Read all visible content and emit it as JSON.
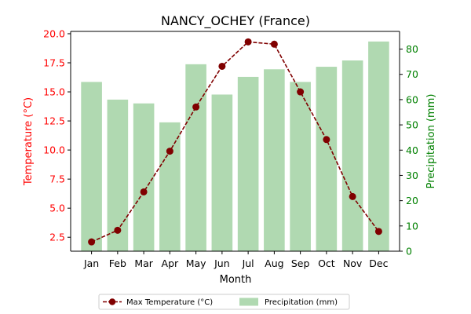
{
  "chart_data": {
    "type": "bar+line",
    "title": "NANCY_OCHEY (France)",
    "xlabel": "Month",
    "categories": [
      "Jan",
      "Feb",
      "Mar",
      "Apr",
      "May",
      "Jun",
      "Jul",
      "Aug",
      "Sep",
      "Oct",
      "Nov",
      "Dec"
    ],
    "left_axis": {
      "label": "Temperature (°C)",
      "color": "#ff0000",
      "ylim": [
        1.3,
        20.2
      ],
      "ticks": [
        2.5,
        5.0,
        7.5,
        10.0,
        12.5,
        15.0,
        17.5,
        20.0
      ],
      "tick_labels": [
        "2.5",
        "5.0",
        "7.5",
        "10.0",
        "12.5",
        "15.0",
        "17.5",
        "20.0"
      ]
    },
    "right_axis": {
      "label": "Precipitation (mm)",
      "color": "#008000",
      "ylim": [
        0,
        87
      ],
      "ticks": [
        0,
        10,
        20,
        30,
        40,
        50,
        60,
        70,
        80
      ],
      "tick_labels": [
        "0",
        "10",
        "20",
        "30",
        "40",
        "50",
        "60",
        "70",
        "80"
      ]
    },
    "series": [
      {
        "name": "Max Temperature (°C)",
        "kind": "line",
        "axis": "left",
        "color": "#800000",
        "values": [
          2.1,
          3.1,
          6.4,
          9.9,
          13.7,
          17.2,
          19.3,
          19.1,
          15.0,
          10.9,
          6.0,
          3.0
        ]
      },
      {
        "name": "Precipitation (mm)",
        "kind": "bar",
        "axis": "right",
        "color": "#b0d9b1",
        "values": [
          67,
          60,
          58.5,
          51,
          74,
          62,
          69,
          72,
          67,
          73,
          75.5,
          83
        ]
      }
    ],
    "legend": {
      "placement": "bottom-center"
    },
    "grid": false
  }
}
